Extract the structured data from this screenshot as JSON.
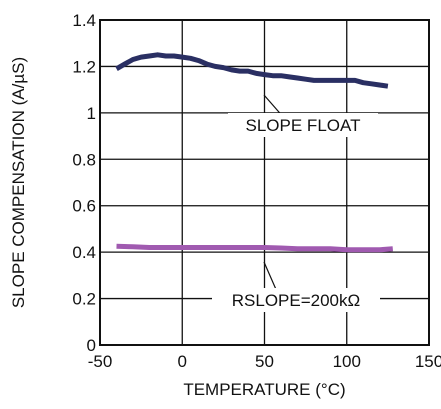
{
  "chart_data": {
    "type": "line",
    "title": "",
    "xlabel": "TEMPERATURE (°C)",
    "ylabel": "SLOPE COMPENSATION (A/µS)",
    "xlim": [
      -50,
      150
    ],
    "ylim": [
      0,
      1.4
    ],
    "grid": true,
    "x_ticks": [
      -50,
      0,
      50,
      100,
      150
    ],
    "y_ticks": [
      0,
      0.2,
      0.4,
      0.6,
      0.8,
      1,
      1.2,
      1.4
    ],
    "x_tick_labels": [
      "-50",
      "0",
      "50",
      "100",
      "150"
    ],
    "y_tick_labels": [
      "0",
      "0.2",
      "0.4",
      "0.6",
      "0.8",
      "1",
      "1.2",
      "1.4"
    ],
    "series": [
      {
        "name": "SLOPE FLOAT",
        "color": "#2a2f63",
        "x": [
          -40,
          -35,
          -30,
          -25,
          -20,
          -15,
          -10,
          -5,
          0,
          5,
          10,
          15,
          20,
          25,
          30,
          35,
          40,
          45,
          50,
          55,
          60,
          65,
          70,
          75,
          80,
          85,
          90,
          95,
          100,
          105,
          110,
          115,
          120,
          125
        ],
        "y": [
          1.19,
          1.21,
          1.23,
          1.24,
          1.245,
          1.25,
          1.245,
          1.245,
          1.24,
          1.235,
          1.225,
          1.21,
          1.2,
          1.195,
          1.185,
          1.18,
          1.18,
          1.17,
          1.165,
          1.16,
          1.16,
          1.155,
          1.15,
          1.145,
          1.14,
          1.14,
          1.14,
          1.14,
          1.14,
          1.14,
          1.13,
          1.125,
          1.12,
          1.115
        ]
      },
      {
        "name": "RSLOPE=200kΩ",
        "color": "#a05ab0",
        "x": [
          -40,
          -30,
          -20,
          -10,
          0,
          10,
          20,
          30,
          40,
          50,
          60,
          70,
          80,
          90,
          100,
          110,
          120,
          128
        ],
        "y": [
          0.425,
          0.423,
          0.42,
          0.42,
          0.42,
          0.42,
          0.42,
          0.42,
          0.42,
          0.42,
          0.418,
          0.415,
          0.415,
          0.415,
          0.41,
          0.41,
          0.41,
          0.415
        ]
      }
    ],
    "annotations": [
      {
        "text": "SLOPE FLOAT",
        "series": 0
      },
      {
        "text": "RSLOPE=200kΩ",
        "series": 1
      }
    ]
  }
}
